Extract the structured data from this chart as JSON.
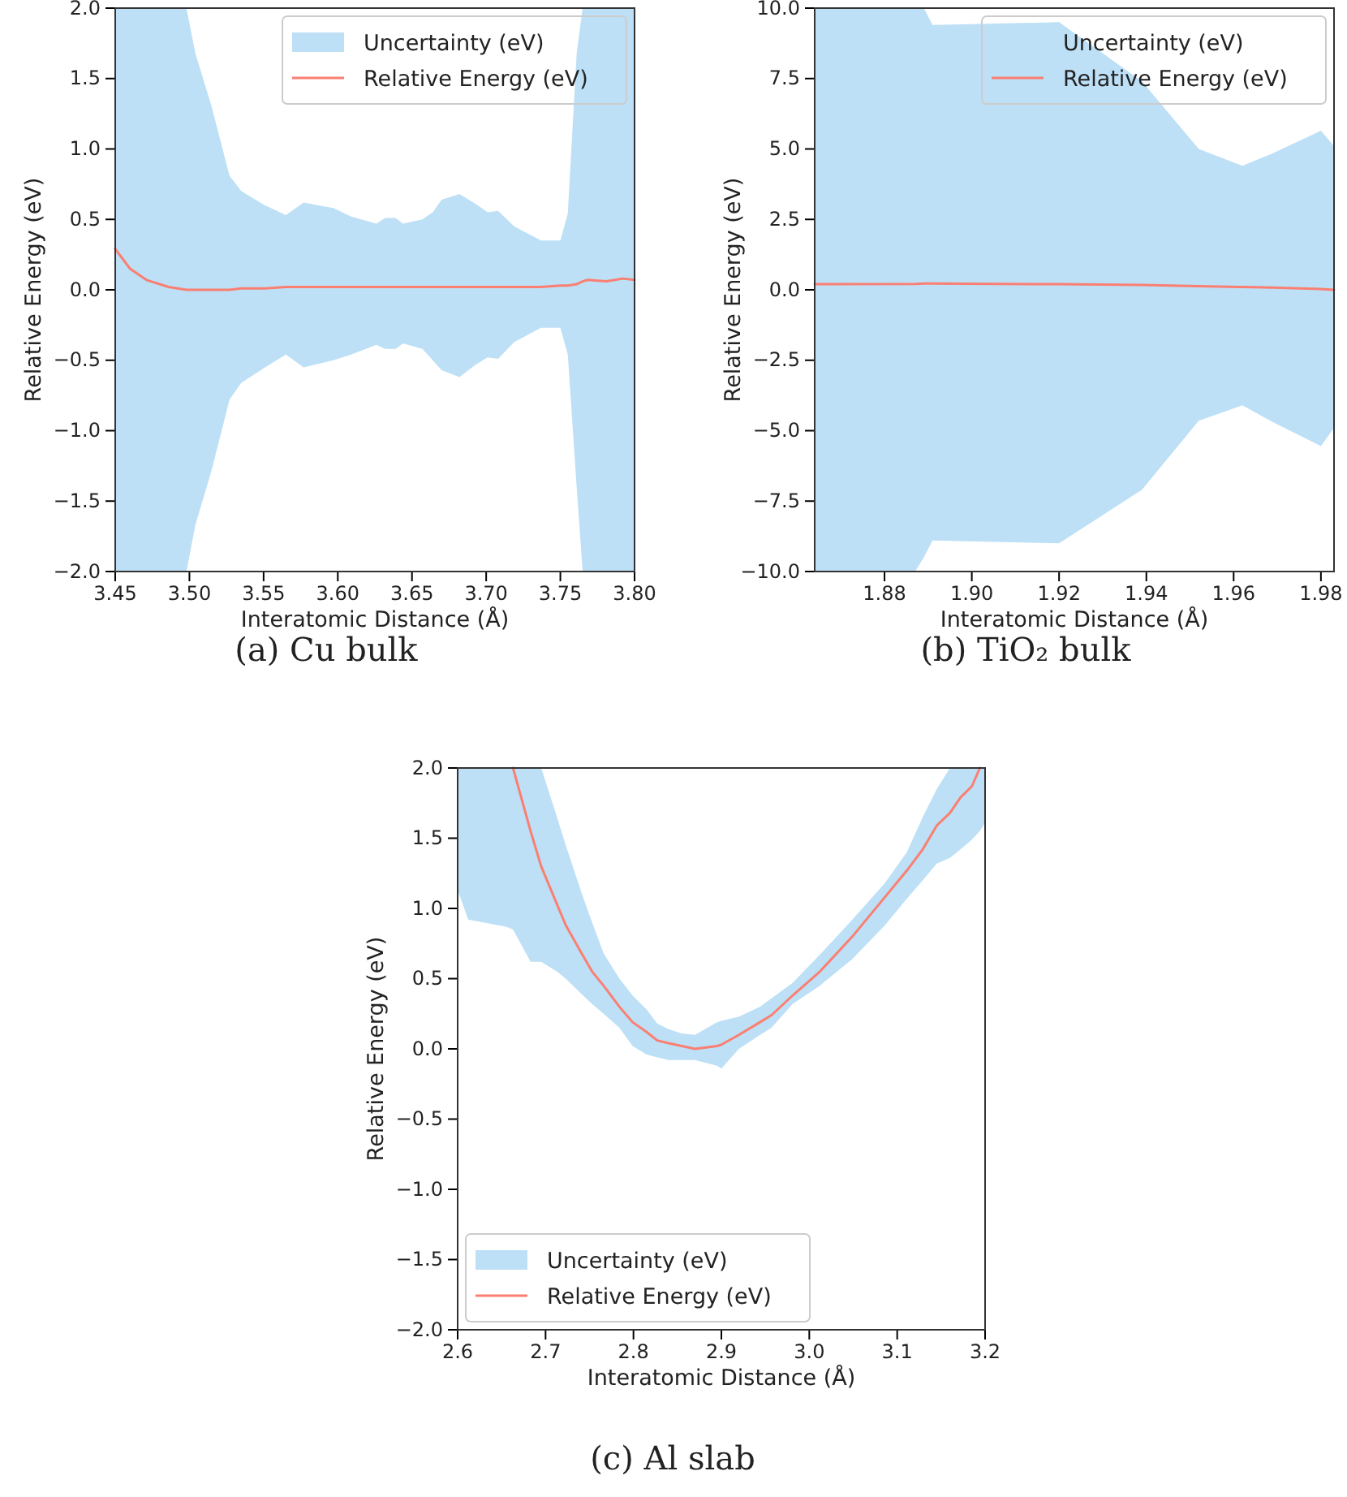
{
  "chart_data": [
    {
      "type": "line",
      "title": "(a) Cu bulk",
      "xlabel": "Interatomic Distance (Å)",
      "ylabel": "Relative Energy (eV)",
      "annotations": [
        "Uncertainty (eV)"
      ],
      "xlim": [
        3.45,
        3.8
      ],
      "xticks": [
        {
          "value": 3.45,
          "label": "3.45"
        },
        {
          "value": 3.5,
          "label": "3.50"
        },
        {
          "value": 3.55,
          "label": "3.55"
        },
        {
          "value": 3.6,
          "label": "3.60"
        },
        {
          "value": 3.65,
          "label": "3.65"
        },
        {
          "value": 3.7,
          "label": "3.70"
        },
        {
          "value": 3.75,
          "label": "3.75"
        },
        {
          "value": 3.8,
          "label": "3.80"
        }
      ],
      "ylim": [
        -2,
        2
      ],
      "yticks": [
        {
          "value": -2,
          "label": "−2.0"
        },
        {
          "value": -1.5,
          "label": "−1.5"
        },
        {
          "value": -1,
          "label": "−1.0"
        },
        {
          "value": -0.5,
          "label": "−0.5"
        },
        {
          "value": 0,
          "label": "0.0"
        },
        {
          "value": 0.5,
          "label": "0.5"
        },
        {
          "value": 1,
          "label": "1.0"
        },
        {
          "value": 1.5,
          "label": "1.5"
        },
        {
          "value": 2,
          "label": "2.0"
        }
      ],
      "legend": "top right",
      "series": [
        {
          "name": "Relative Energy (eV)",
          "color": "#fa7f72",
          "x": [
            3.45,
            3.46,
            3.471,
            3.486,
            3.498,
            3.504,
            3.515,
            3.527,
            3.535,
            3.551,
            3.565,
            3.577,
            3.597,
            3.609,
            3.626,
            3.632,
            3.639,
            3.644,
            3.657,
            3.664,
            3.67,
            3.682,
            3.693,
            3.701,
            3.708,
            3.719,
            3.737,
            3.75,
            3.755,
            3.761,
            3.765,
            3.768,
            3.781,
            3.792,
            3.8
          ],
          "values": [
            0.29,
            0.15,
            0.07,
            0.02,
            0,
            0,
            0,
            0,
            0.01,
            0.01,
            0.02,
            0.02,
            0.02,
            0.02,
            0.02,
            0.02,
            0.02,
            0.02,
            0.02,
            0.02,
            0.02,
            0.02,
            0.02,
            0.02,
            0.02,
            0.02,
            0.02,
            0.03,
            0.03,
            0.04,
            0.06,
            0.07,
            0.06,
            0.08,
            0.07
          ],
          "upper": [
            2,
            2,
            2,
            2,
            2,
            1.68,
            1.3,
            0.81,
            0.7,
            0.6,
            0.53,
            0.62,
            0.58,
            0.52,
            0.47,
            0.51,
            0.51,
            0.47,
            0.5,
            0.55,
            0.64,
            0.68,
            0.61,
            0.55,
            0.56,
            0.45,
            0.35,
            0.35,
            0.54,
            1.68,
            2,
            2,
            2,
            2,
            2
          ],
          "lower": [
            -2,
            -2,
            -2,
            -2,
            -2,
            -1.67,
            -1.28,
            -0.78,
            -0.66,
            -0.55,
            -0.46,
            -0.55,
            -0.5,
            -0.46,
            -0.39,
            -0.42,
            -0.42,
            -0.38,
            -0.42,
            -0.5,
            -0.57,
            -0.62,
            -0.53,
            -0.48,
            -0.49,
            -0.37,
            -0.27,
            -0.27,
            -0.46,
            -1.4,
            -2,
            -2,
            -2,
            -2,
            -2
          ]
        }
      ]
    },
    {
      "type": "line",
      "title": "(b) TiO₂ bulk",
      "xlabel": "Interatomic Distance (Å)",
      "ylabel": "Relative Energy (eV)",
      "annotations": [
        "Uncertainty (eV)"
      ],
      "xlim": [
        1.864,
        1.983
      ],
      "xticks": [
        {
          "value": 1.88,
          "label": "1.88"
        },
        {
          "value": 1.9,
          "label": "1.90"
        },
        {
          "value": 1.92,
          "label": "1.92"
        },
        {
          "value": 1.94,
          "label": "1.94"
        },
        {
          "value": 1.96,
          "label": "1.96"
        },
        {
          "value": 1.98,
          "label": "1.98"
        }
      ],
      "ylim": [
        -10,
        10
      ],
      "yticks": [
        {
          "value": -10,
          "label": "−10.0"
        },
        {
          "value": -7.5,
          "label": "−7.5"
        },
        {
          "value": -5,
          "label": "−5.0"
        },
        {
          "value": -2.5,
          "label": "−2.5"
        },
        {
          "value": 0,
          "label": "0.0"
        },
        {
          "value": 2.5,
          "label": "2.5"
        },
        {
          "value": 5,
          "label": "5.0"
        },
        {
          "value": 7.5,
          "label": "7.5"
        },
        {
          "value": 10,
          "label": "10.0"
        }
      ],
      "legend": "top right",
      "series": [
        {
          "name": "Relative Energy (eV)",
          "color": "#fa7f72",
          "x": [
            1.864,
            1.887,
            1.889,
            1.891,
            1.92,
            1.939,
            1.952,
            1.962,
            1.969,
            1.98,
            1.983
          ],
          "values": [
            0.2,
            0.21,
            0.22,
            0.22,
            0.2,
            0.17,
            0.13,
            0.1,
            0.08,
            0.03,
            0
          ],
          "upper": [
            10,
            10,
            10,
            9.4,
            9.5,
            7.4,
            5,
            4.4,
            4.85,
            5.65,
            5.1
          ],
          "lower": [
            -10,
            -10,
            -9.5,
            -8.9,
            -9,
            -7.1,
            -4.65,
            -4.1,
            -4.7,
            -5.55,
            -4.9
          ]
        }
      ]
    },
    {
      "type": "line",
      "title": "(c) Al slab",
      "xlabel": "Interatomic Distance (Å)",
      "ylabel": "Relative Energy (eV)",
      "annotations": [
        "Uncertainty (eV)"
      ],
      "xlim": [
        2.6,
        3.2
      ],
      "xticks": [
        {
          "value": 2.6,
          "label": "2.6"
        },
        {
          "value": 2.7,
          "label": "2.7"
        },
        {
          "value": 2.8,
          "label": "2.8"
        },
        {
          "value": 2.9,
          "label": "2.9"
        },
        {
          "value": 3,
          "label": "3.0"
        },
        {
          "value": 3.1,
          "label": "3.1"
        },
        {
          "value": 3.2,
          "label": "3.2"
        }
      ],
      "ylim": [
        -2,
        2
      ],
      "yticks": [
        {
          "value": -2,
          "label": "−2.0"
        },
        {
          "value": -1.5,
          "label": "−1.5"
        },
        {
          "value": -1,
          "label": "−1.0"
        },
        {
          "value": -0.5,
          "label": "−0.5"
        },
        {
          "value": 0,
          "label": "0.0"
        },
        {
          "value": 0.5,
          "label": "0.5"
        },
        {
          "value": 1,
          "label": "1.0"
        },
        {
          "value": 1.5,
          "label": "1.5"
        },
        {
          "value": 2,
          "label": "2.0"
        }
      ],
      "legend": "bottom left",
      "series": [
        {
          "name": "Relative Energy (eV)",
          "color": "#fa7f72",
          "x": [
            2.6,
            2.612,
            2.655,
            2.663,
            2.683,
            2.695,
            2.713,
            2.723,
            2.741,
            2.753,
            2.766,
            2.784,
            2.799,
            2.815,
            2.827,
            2.84,
            2.855,
            2.87,
            2.895,
            2.9,
            2.92,
            2.944,
            2.957,
            2.981,
            3.012,
            3.049,
            3.086,
            3.111,
            3.129,
            3.145,
            3.16,
            3.172,
            3.185,
            3.194,
            3.2
          ],
          "values": [
            null,
            null,
            null,
            2,
            1.55,
            1.3,
            1.03,
            0.88,
            0.68,
            0.55,
            0.45,
            0.3,
            0.19,
            0.12,
            0.06,
            0.04,
            0.02,
            0,
            0.02,
            0.03,
            0.1,
            0.19,
            0.24,
            0.38,
            0.55,
            0.8,
            1.08,
            1.27,
            1.42,
            1.59,
            1.68,
            1.79,
            1.87,
            2,
            null
          ],
          "upper": [
            2,
            2,
            2,
            2,
            2,
            2,
            1.65,
            1.45,
            1.11,
            0.9,
            0.68,
            0.5,
            0.38,
            0.28,
            0.18,
            0.14,
            0.11,
            0.1,
            0.19,
            0.2,
            0.23,
            0.3,
            0.36,
            0.47,
            0.67,
            0.92,
            1.18,
            1.4,
            1.65,
            1.85,
            2,
            2,
            2,
            2,
            2
          ],
          "lower": [
            1.13,
            0.92,
            0.87,
            0.85,
            0.62,
            0.62,
            0.55,
            0.5,
            0.39,
            0.32,
            0.25,
            0.15,
            0.02,
            -0.04,
            -0.06,
            -0.08,
            -0.08,
            -0.08,
            -0.12,
            -0.14,
            0,
            0.1,
            0.15,
            0.32,
            0.45,
            0.64,
            0.88,
            1.07,
            1.2,
            1.32,
            1.36,
            1.42,
            1.49,
            1.55,
            1.61
          ]
        }
      ]
    }
  ]
}
